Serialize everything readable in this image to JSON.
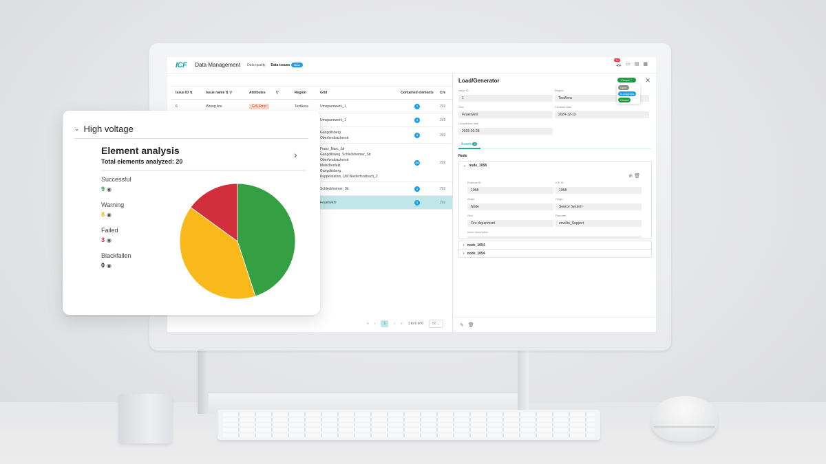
{
  "app": {
    "logo": "ICF",
    "title": "Data Management",
    "nav": [
      {
        "label": "Data quality",
        "active": false
      },
      {
        "label": "Data issues",
        "active": true,
        "badge": "New"
      }
    ],
    "notification_count": "16",
    "icons": [
      "bell-icon",
      "inbox-icon",
      "document-icon",
      "grid-icon"
    ]
  },
  "table": {
    "columns": [
      "Issue ID",
      "Issue name",
      "Attributes",
      "Region",
      "Grid",
      "Contained elements",
      "Cre"
    ],
    "rows": [
      {
        "id": "6",
        "name": "Wrong line",
        "attribute": "GIS Error",
        "region": "TestArea",
        "grid": [
          "Umspannwerk_1"
        ],
        "count": "1",
        "created": "202",
        "selected": false
      },
      {
        "id": "",
        "name": "",
        "attribute": "",
        "region": "",
        "grid": [
          "Umspannwerk_1"
        ],
        "count": "1",
        "created": "202",
        "selected": false
      },
      {
        "id": "",
        "name": "",
        "attribute": "",
        "region": "",
        "grid": [
          "Gangolfsberg",
          "Oberforstbacherstr"
        ],
        "count": "3",
        "created": "202",
        "selected": false
      },
      {
        "id": "",
        "name": "",
        "attribute": "",
        "region": "",
        "grid": [
          "Franz_Marc_Str",
          "Gangolfsweg, Schleckheimer_Str",
          "Oberforstbacherstr",
          "Melschenfeld",
          "Gangolfsberg",
          "Kuppelstation, UW Niederforstbach_2"
        ],
        "count": "14",
        "created": "202",
        "selected": false
      },
      {
        "id": "",
        "name": "",
        "attribute": "",
        "region": "",
        "grid": [
          "Schleckheimer_Str"
        ],
        "count": "1",
        "created": "202",
        "selected": false
      },
      {
        "id": "",
        "name": "",
        "attribute": "",
        "region": "",
        "grid": [
          "Feuerwehr"
        ],
        "count": "3",
        "created": "202",
        "selected": true
      }
    ],
    "pagination": {
      "first": "«",
      "prev": "‹",
      "current": "1",
      "next": "›",
      "last": "»",
      "range": "1 to 6 of 6",
      "page_size": "50"
    }
  },
  "drawer": {
    "title": "Load/Generator",
    "status": "Closed",
    "status_options": [
      {
        "label": "Open",
        "color": "#8a8a8a"
      },
      {
        "label": "In progress",
        "color": "#1ea0e6"
      },
      {
        "label": "Closed",
        "color": "#1b9b3c"
      }
    ],
    "fields": {
      "issue_id": {
        "label": "Issue ID",
        "value": "1"
      },
      "region": {
        "label": "Region",
        "value": "TestArea"
      },
      "grid": {
        "label": "Grid",
        "value": "Feuerwehr"
      },
      "creation_date": {
        "label": "Creation date",
        "value": "2024-12-13"
      },
      "completion_date": {
        "label": "Completion date",
        "value": "2025-02-28"
      }
    },
    "tab": {
      "label": "Assets",
      "count": "3"
    },
    "section": "Node",
    "nodes": [
      {
        "name": "node_1058",
        "expanded": true,
        "fields": {
          "external_id": {
            "label": "External ID",
            "value": "1058"
          },
          "icp_id": {
            "label": "ICP ID",
            "value": "1058"
          },
          "asset": {
            "label": "Asset",
            "value": "Node"
          },
          "origin": {
            "label": "Origin",
            "value": "Source System"
          },
          "grid": {
            "label": "Grid",
            "value": "Fire department"
          },
          "reporter": {
            "label": "Reporter",
            "value": "envelio_Support"
          },
          "issue_description": {
            "label": "Issue description",
            "value": ""
          }
        }
      },
      {
        "name": "node_1054",
        "expanded": false
      },
      {
        "name": "node_1054",
        "expanded": false
      }
    ]
  },
  "card": {
    "section": "High voltage",
    "title": "Element analysis",
    "subtitle": "Total elements analyzed: 20",
    "legend": [
      {
        "label": "Successful",
        "value": "9",
        "color": "#33a046"
      },
      {
        "label": "Warning",
        "value": "8",
        "color": "#f7b500"
      },
      {
        "label": "Failed",
        "value": "3",
        "color": "#d32f3c"
      },
      {
        "label": "Blackfallen",
        "value": "0",
        "color": "#222222"
      }
    ]
  },
  "chart_data": {
    "type": "pie",
    "title": "Element analysis",
    "subtitle": "Total elements analyzed: 20",
    "categories": [
      "Successful",
      "Warning",
      "Failed",
      "Blackfallen"
    ],
    "values": [
      9,
      8,
      3,
      0
    ],
    "colors": [
      "#34a043",
      "#f9b91a",
      "#d12f3c",
      "#222222"
    ],
    "start_angle": "12 o'clock, clockwise"
  }
}
